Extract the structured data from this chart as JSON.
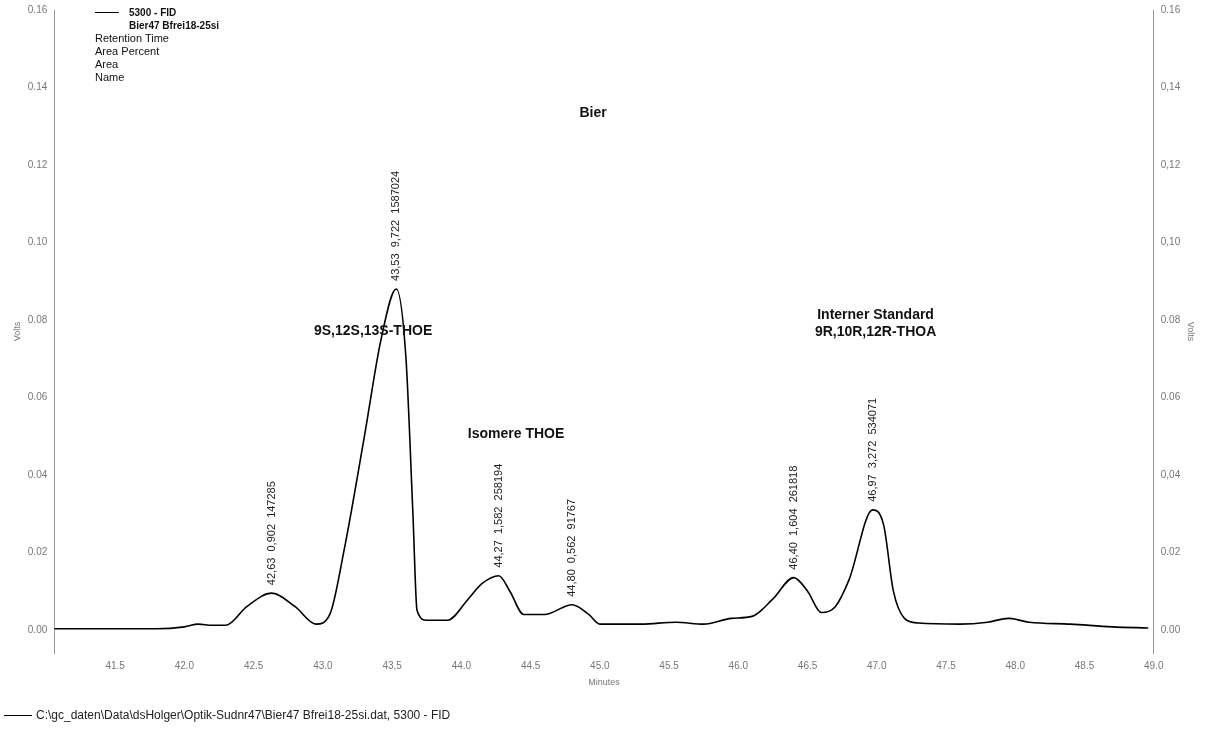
{
  "chart_data": {
    "type": "line",
    "title": "Bier",
    "xlabel": "Minutes",
    "ylabel": "Volts",
    "y2label": "Volts",
    "legend": "top left",
    "legend_title": "Bier47 Bfrei18-25si",
    "marker": "none",
    "grid": false,
    "xlim": [
      41.06,
      49.0
    ],
    "ylim": [
      -0.006,
      0.16
    ],
    "y2lim": [
      -0.006,
      0.16
    ],
    "xticks": [
      {
        "value": 41.5,
        "label": "41.5"
      },
      {
        "value": 42,
        "label": "42.0"
      },
      {
        "value": 42.5,
        "label": "42.5"
      },
      {
        "value": 43,
        "label": "43.0"
      },
      {
        "value": 43.5,
        "label": "43,5"
      },
      {
        "value": 44,
        "label": "44.0"
      },
      {
        "value": 44.5,
        "label": "44.5"
      },
      {
        "value": 45,
        "label": "45.0"
      },
      {
        "value": 45.5,
        "label": "45.5"
      },
      {
        "value": 46,
        "label": "46.0"
      },
      {
        "value": 46.5,
        "label": "46.5"
      },
      {
        "value": 47,
        "label": "47.0"
      },
      {
        "value": 47.5,
        "label": "47.5"
      },
      {
        "value": 48,
        "label": "48.0"
      },
      {
        "value": 48.5,
        "label": "48.5"
      },
      {
        "value": 49,
        "label": "49.0"
      }
    ],
    "yticks": [
      {
        "value": 0,
        "label": "0.00"
      },
      {
        "value": 0.02,
        "label": "0.02"
      },
      {
        "value": 0.04,
        "label": "0.04"
      },
      {
        "value": 0.06,
        "label": "0.06"
      },
      {
        "value": 0.08,
        "label": "0.08"
      },
      {
        "value": 0.1,
        "label": "0.10"
      },
      {
        "value": 0.12,
        "label": "0.12"
      },
      {
        "value": 0.14,
        "label": "0.14"
      },
      {
        "value": 0.16,
        "label": "0.16"
      }
    ],
    "y2ticks": [
      {
        "value": 0,
        "label": "0.00"
      },
      {
        "value": 0.02,
        "label": "0.02"
      },
      {
        "value": 0.04,
        "label": "0,04"
      },
      {
        "value": 0.06,
        "label": "0.06"
      },
      {
        "value": 0.08,
        "label": "0.08"
      },
      {
        "value": 0.1,
        "label": "0,10"
      },
      {
        "value": 0.12,
        "label": "0,12"
      },
      {
        "value": 0.14,
        "label": "0,14"
      },
      {
        "value": 0.16,
        "label": "0.16"
      }
    ],
    "x": [
      41.06,
      41.8,
      42.0,
      42.1,
      42.2,
      42.3,
      42.45,
      42.63,
      42.8,
      42.95,
      43.05,
      43.15,
      43.3,
      43.42,
      43.53,
      43.6,
      43.65,
      43.68,
      43.75,
      43.9,
      44.05,
      44.15,
      44.27,
      44.35,
      44.45,
      44.6,
      44.8,
      44.92,
      45.0,
      45.3,
      45.55,
      45.75,
      45.95,
      46.1,
      46.25,
      46.4,
      46.5,
      46.6,
      46.7,
      46.8,
      46.97,
      47.05,
      47.12,
      47.2,
      47.3,
      47.6,
      47.8,
      47.95,
      48.1,
      48.4,
      48.7,
      48.96
    ],
    "series": [
      {
        "name": "5300 - FID",
        "color": "#000000",
        "values": [
          0.0003,
          0.0003,
          0.0008,
          0.0015,
          0.0012,
          0.0012,
          0.006,
          0.0095,
          0.006,
          0.0015,
          0.004,
          0.02,
          0.05,
          0.075,
          0.088,
          0.07,
          0.03,
          0.005,
          0.0025,
          0.0025,
          0.008,
          0.012,
          0.014,
          0.01,
          0.004,
          0.004,
          0.0065,
          0.004,
          0.0015,
          0.0015,
          0.002,
          0.0015,
          0.003,
          0.0035,
          0.008,
          0.0135,
          0.01,
          0.0045,
          0.006,
          0.013,
          0.031,
          0.027,
          0.01,
          0.003,
          0.0018,
          0.0015,
          0.002,
          0.003,
          0.002,
          0.0015,
          0.0008,
          0.0005
        ]
      }
    ],
    "annotations": [
      "Retention Time",
      "Area Percent",
      "Area",
      "Name",
      "9S,12S,13S-THOE",
      "Isomere THOE",
      "Interner Standard\n9R,10R,12R-THOA",
      "C:\\gc_daten\\Data\\dsHolger\\Optik-Sudnr47\\Bier47 Bfrei18-25si.dat, 5300 - FID",
      {
        "text": "42,63  0,902  147285",
        "x": 42.63,
        "y": 0.0095
      },
      {
        "text": "43,53  9,722  1587024",
        "x": 43.53,
        "y": 0.088
      },
      {
        "text": "44,27  1,582  258194",
        "x": 44.27,
        "y": 0.014
      },
      {
        "text": "44,80  0,562  91767",
        "x": 44.8,
        "y": 0.0065
      },
      {
        "text": "46,40  1,604  261818",
        "x": 46.4,
        "y": 0.0135
      },
      {
        "text": "46,97  3,272  534071",
        "x": 46.97,
        "y": 0.031
      }
    ]
  }
}
